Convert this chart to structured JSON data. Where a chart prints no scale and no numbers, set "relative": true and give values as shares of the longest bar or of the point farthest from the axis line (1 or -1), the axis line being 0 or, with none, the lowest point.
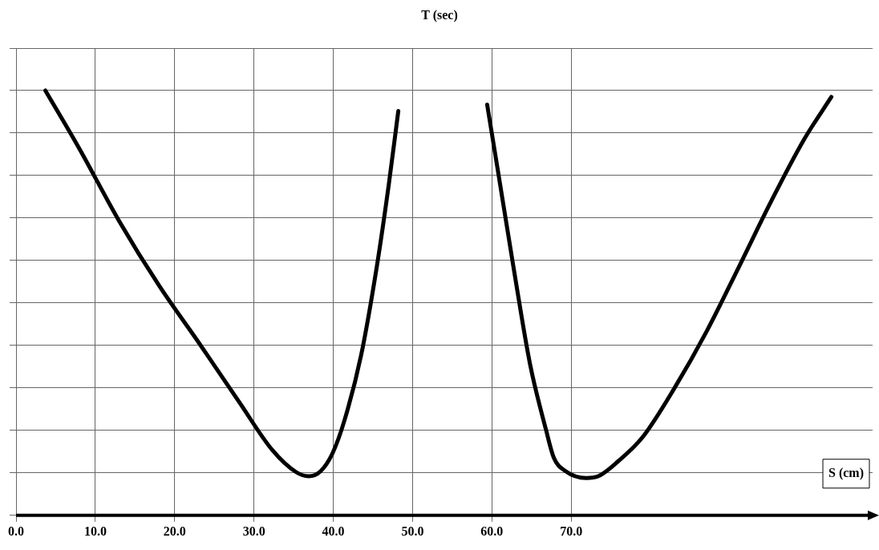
{
  "chart_data": {
    "type": "line",
    "xlabel": "S (cm)",
    "annotations": [
      "T (sec)"
    ],
    "relative": true,
    "grid": true,
    "legend": false,
    "marker": "none",
    "line_style": "solid",
    "xlim": [
      0,
      108
    ],
    "xticks": [
      {
        "value": 0,
        "label": "0.0"
      },
      {
        "value": 10,
        "label": "10.0"
      },
      {
        "value": 20,
        "label": "20.0"
      },
      {
        "value": 30,
        "label": "30.0"
      },
      {
        "value": 40,
        "label": "40.0"
      },
      {
        "value": 50,
        "label": "50.0"
      },
      {
        "value": 60,
        "label": "60.0"
      },
      {
        "value": 70,
        "label": "70.0"
      }
    ],
    "series": [
      {
        "color": "#000000",
        "x": [
          3.7,
          7.9,
          13.0,
          18.1,
          23.1,
          28.2,
          32.3,
          35.3,
          36.9,
          38.4,
          39.9,
          41.4,
          43.5,
          45.5,
          47.0,
          48.2
        ],
        "values": [
          1.0,
          0.866,
          0.693,
          0.539,
          0.405,
          0.265,
          0.154,
          0.102,
          0.092,
          0.104,
          0.146,
          0.223,
          0.376,
          0.587,
          0.779,
          0.952
        ]
      },
      {
        "color": "#000000",
        "x": [
          59.4,
          60.7,
          62.7,
          64.8,
          66.8,
          67.8,
          69.3,
          71.9,
          73.4,
          75.9,
          79.0,
          83.0,
          87.1,
          91.2,
          95.2,
          99.3,
          102.8
        ],
        "values": [
          0.967,
          0.818,
          0.587,
          0.357,
          0.203,
          0.136,
          0.104,
          0.088,
          0.092,
          0.127,
          0.184,
          0.299,
          0.434,
          0.587,
          0.739,
          0.883,
          0.985
        ]
      }
    ]
  }
}
